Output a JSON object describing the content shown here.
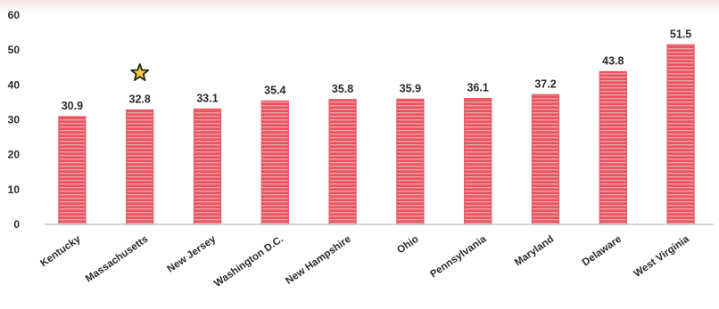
{
  "chart_data": {
    "type": "bar",
    "categories": [
      "Kentucky",
      "Massachusetts",
      "New Jersey",
      "Washington D.C.",
      "New Hampshire",
      "Ohio",
      "Pennsylvania",
      "Maryland",
      "Delaware",
      "West Virginia"
    ],
    "values": [
      30.9,
      32.8,
      33.1,
      35.4,
      35.8,
      35.9,
      36.1,
      37.2,
      43.8,
      51.5
    ],
    "data_labels": [
      "30.9",
      "32.8",
      "33.1",
      "35.4",
      "35.8",
      "35.9",
      "36.1",
      "37.2",
      "43.8",
      "51.5"
    ],
    "yticks": [
      "0",
      "10",
      "20",
      "30",
      "40",
      "50",
      "60"
    ],
    "ylim": [
      0,
      60
    ],
    "title": "",
    "xlabel": "",
    "ylabel": "",
    "highlight_category": "Massachusetts",
    "highlight_marker": "star-icon",
    "grid": false,
    "legend": "none",
    "bar_color": "#e8545f",
    "bar_stripe_color": "#ffffff",
    "star_color": "#1f2a14",
    "star_center_color": "#f2c12e"
  }
}
